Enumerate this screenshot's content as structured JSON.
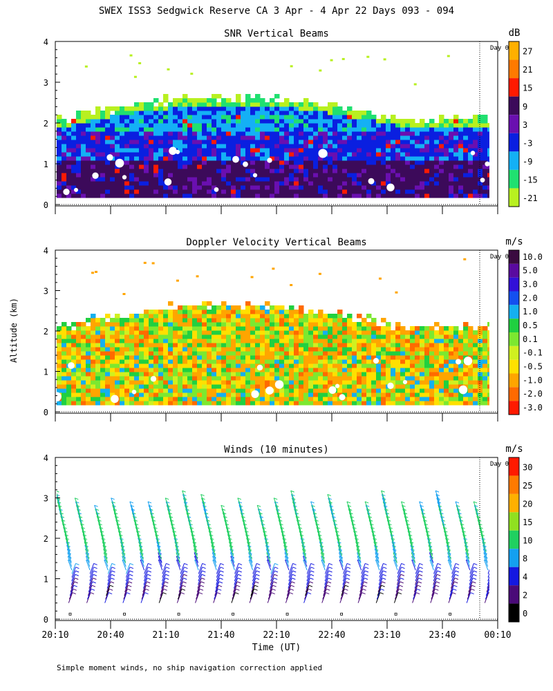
{
  "title": "SWEX ISS3 Sedgwick Reserve CA   3 Apr -  4 Apr 22 Days 093 - 094",
  "ylabel": "Altitude (km)",
  "xlabel": "Time (UT)",
  "footnote": "Simple moment winds, no ship navigation correction applied",
  "day_marker": "Day 0",
  "time_ticks": [
    "20:10",
    "20:40",
    "21:10",
    "21:40",
    "22:10",
    "22:40",
    "23:10",
    "23:40",
    "00:10"
  ],
  "alt_ticks": [
    "0",
    "1",
    "2",
    "3",
    "4"
  ],
  "chart_data": [
    {
      "type": "heatmap",
      "title": "SNR Vertical Beams",
      "units": "dB",
      "ylim": [
        0,
        4
      ],
      "colorbar": {
        "labels": [
          "27",
          "21",
          "15",
          "9",
          "3",
          "-3",
          "-9",
          "-15",
          "-21"
        ],
        "colors": [
          "#ffb000",
          "#ff7a00",
          "#ff1a00",
          "#3c0a5a",
          "#6a0fb0",
          "#0a1fe0",
          "#14b0f5",
          "#20e070",
          "#b8f020"
        ]
      },
      "layers": [
        {
          "name": "low",
          "alt": [
            0.15,
            1.0
          ],
          "color": "#3c0a5a"
        },
        {
          "name": "mid",
          "alt": [
            1.0,
            1.8
          ],
          "color": "#0a1fe0"
        },
        {
          "name": "upper",
          "alt": [
            1.8,
            2.2
          ],
          "color": "#14b0f5"
        },
        {
          "name": "top",
          "alt": [
            2.2,
            2.6
          ],
          "color": "#b8f020"
        }
      ]
    },
    {
      "type": "heatmap",
      "title": "Doppler Velocity Vertical Beams",
      "units": "m/s",
      "ylim": [
        0,
        4
      ],
      "colorbar": {
        "labels": [
          "10.0",
          "5.0",
          "3.0",
          "2.0",
          "1.0",
          "0.5",
          "0.1",
          "-0.1",
          "-0.5",
          "-1.0",
          "-2.0",
          "-3.0"
        ],
        "colors": [
          "#3a0a40",
          "#5a0aa0",
          "#3210d8",
          "#1450f0",
          "#14b0f0",
          "#20d040",
          "#7ce830",
          "#d0f020",
          "#ffe000",
          "#ffa500",
          "#ff6a00",
          "#ff1a00"
        ]
      }
    },
    {
      "type": "barbs",
      "title": "Winds (10 minutes)",
      "units": "m/s",
      "ylim": [
        0,
        4
      ],
      "colorbar": {
        "labels": [
          "30",
          "25",
          "20",
          "15",
          "10",
          "8",
          "4",
          "2",
          "0"
        ],
        "colors": [
          "#ff1a00",
          "#ff7a00",
          "#ffb000",
          "#90e020",
          "#20d060",
          "#14a0f0",
          "#1418e0",
          "#4a0a78",
          "#000000"
        ]
      },
      "profiles": 24,
      "speed_by_altitude_m_s": [
        {
          "alt": 0.6,
          "speed": 3
        },
        {
          "alt": 1.0,
          "speed": 6
        },
        {
          "alt": 1.5,
          "speed": 10
        },
        {
          "alt": 2.0,
          "speed": 12
        },
        {
          "alt": 2.7,
          "speed": 10
        }
      ]
    }
  ]
}
